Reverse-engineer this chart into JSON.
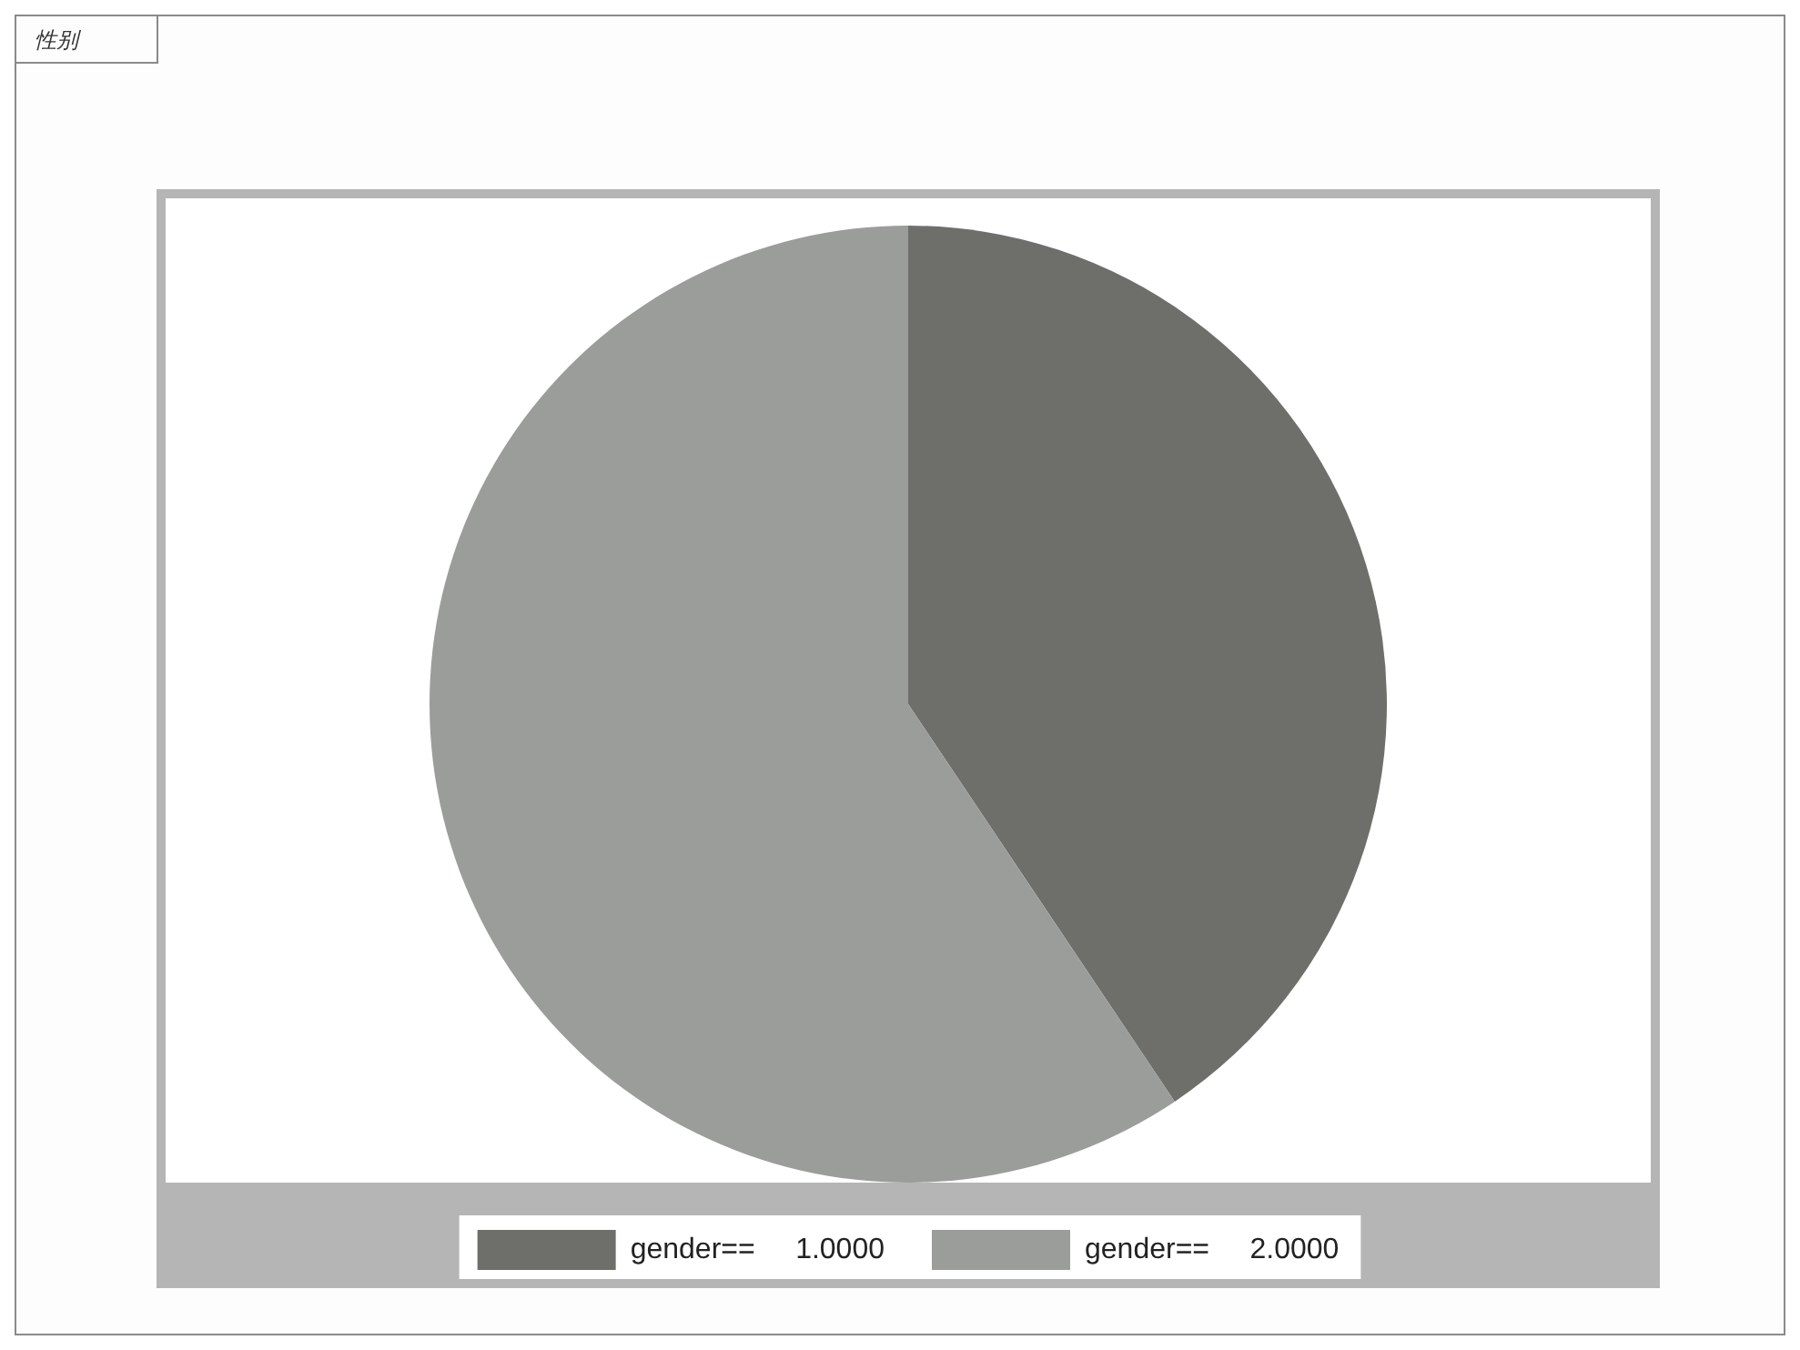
{
  "chart_data": {
    "type": "pie",
    "title": "性别",
    "categories": [
      "gender==     1.0000",
      "gender==     2.0000"
    ],
    "values": [
      40.6,
      59.4
    ],
    "colors": [
      "#6e6f6b",
      "#9b9d9b"
    ],
    "legend": "bottom"
  }
}
